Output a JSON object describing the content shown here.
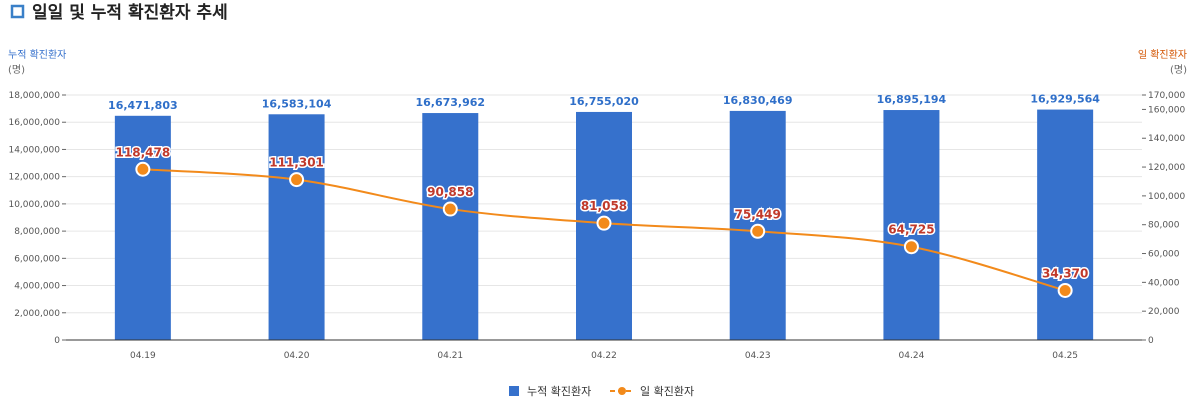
{
  "header": {
    "title": "일일 및 누적 확진환자 추세"
  },
  "axes": {
    "left_title": "누적 확진환자",
    "right_title": "일 확진환자",
    "left_unit": "(명)",
    "right_unit": "(명)"
  },
  "legend": {
    "bar_label": "누적 확진환자",
    "line_label": "일 확진환자"
  },
  "colors": {
    "bar": "#3671cc",
    "line": "#f28a1b",
    "bar_label": "#2f6fc9",
    "line_label": "#c0392b",
    "title_square": "#3a80c8"
  },
  "chart_data": {
    "type": "bar",
    "categories": [
      "04.19",
      "04.20",
      "04.21",
      "04.22",
      "04.23",
      "04.24",
      "04.25"
    ],
    "series": [
      {
        "name": "누적 확진환자",
        "type": "bar",
        "axis": "left",
        "values": [
          16471803,
          16583104,
          16673962,
          16755020,
          16830469,
          16895194,
          16929564
        ],
        "labels": [
          "16,471,803",
          "16,583,104",
          "16,673,962",
          "16,755,020",
          "16,830,469",
          "16,895,194",
          "16,929,564"
        ]
      },
      {
        "name": "일 확진환자",
        "type": "line",
        "axis": "right",
        "values": [
          118478,
          111301,
          90858,
          81058,
          75449,
          64725,
          34370
        ],
        "labels": [
          "118,478",
          "111,301",
          "90,858",
          "81,058",
          "75,449",
          "64,725",
          "34,370"
        ]
      }
    ],
    "y_left": {
      "min": 0,
      "max": 18000000,
      "ticks": [
        0,
        2000000,
        4000000,
        6000000,
        8000000,
        10000000,
        12000000,
        14000000,
        16000000,
        18000000
      ],
      "tick_labels": [
        "0",
        "2,000,000",
        "4,000,000",
        "6,000,000",
        "8,000,000",
        "10,000,000",
        "12,000,000",
        "14,000,000",
        "16,000,000",
        "18,000,000"
      ]
    },
    "y_right": {
      "min": 0,
      "max": 170000,
      "ticks": [
        0,
        20000,
        40000,
        60000,
        80000,
        100000,
        120000,
        140000,
        160000,
        170000
      ],
      "tick_labels": [
        "0",
        "20,000",
        "40,000",
        "60,000",
        "80,000",
        "100,000",
        "120,000",
        "140,000",
        "160,000",
        "170,000"
      ]
    },
    "grid": true,
    "legend_position": "bottom"
  }
}
